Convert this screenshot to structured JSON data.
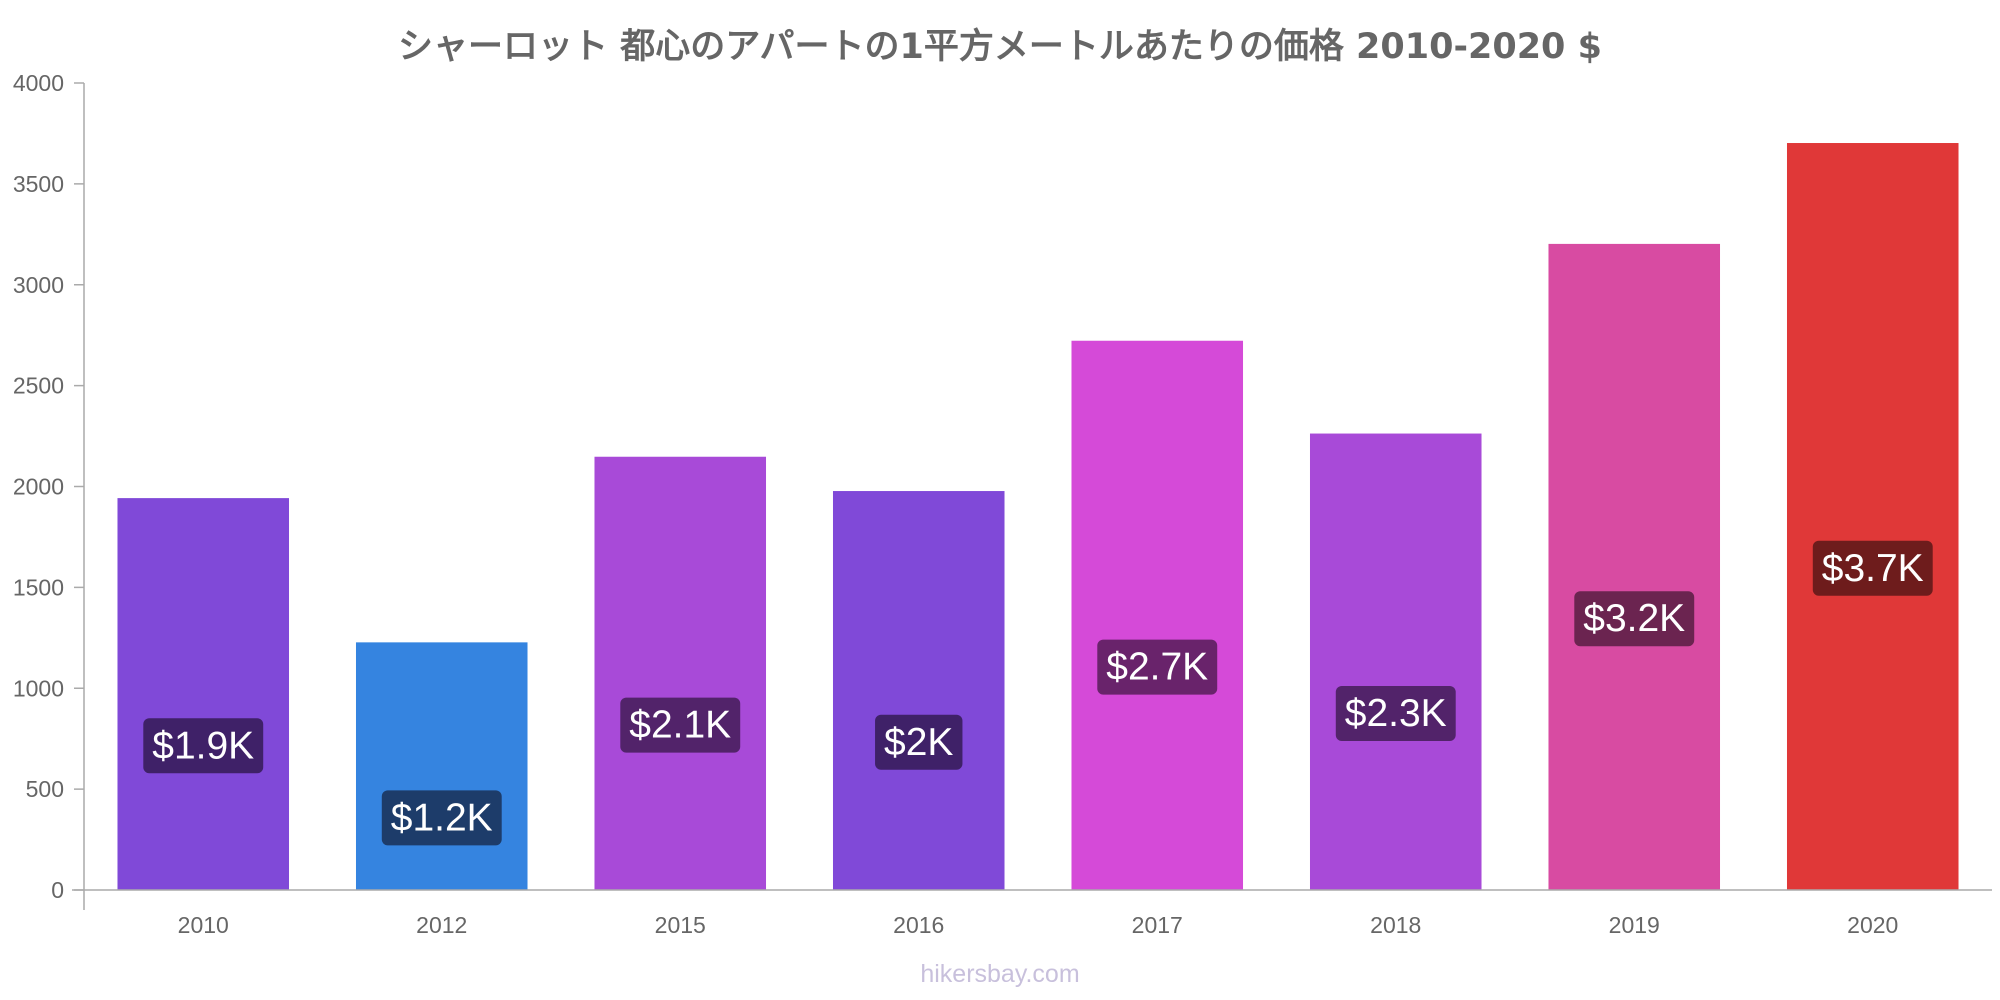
{
  "chart_data": {
    "type": "bar",
    "title": "シャーロット 都心のアパートの1平方メートルあたりの価格 2010-2020 $",
    "categories": [
      "2010",
      "2012",
      "2015",
      "2016",
      "2017",
      "2018",
      "2019",
      "2020"
    ],
    "values": [
      1940,
      1225,
      2145,
      1975,
      2720,
      2260,
      3200,
      3700
    ],
    "data_labels": [
      "$1.9K",
      "$1.2K",
      "$2.1K",
      "$2K",
      "$2.7K",
      "$2.3K",
      "$3.2K",
      "$3.7K"
    ],
    "bar_colors": [
      "#8049d8",
      "#3584e0",
      "#a84ad8",
      "#8049d8",
      "#d54ad8",
      "#a84ad8",
      "#d84ba2",
      "#e03838"
    ],
    "label_bg_colors": [
      "#3f2168",
      "#1d3c6a",
      "#52236a",
      "#3f2168",
      "#69236b",
      "#52236a",
      "#6b2450",
      "#6e1c1c"
    ],
    "ylim": [
      0,
      4000
    ],
    "yticks": [
      0,
      500,
      1000,
      1500,
      2000,
      2500,
      3000,
      3500,
      4000
    ],
    "xlabel": "",
    "ylabel": "",
    "grid": false,
    "legend": "none"
  },
  "watermark": "hikersbay.com"
}
